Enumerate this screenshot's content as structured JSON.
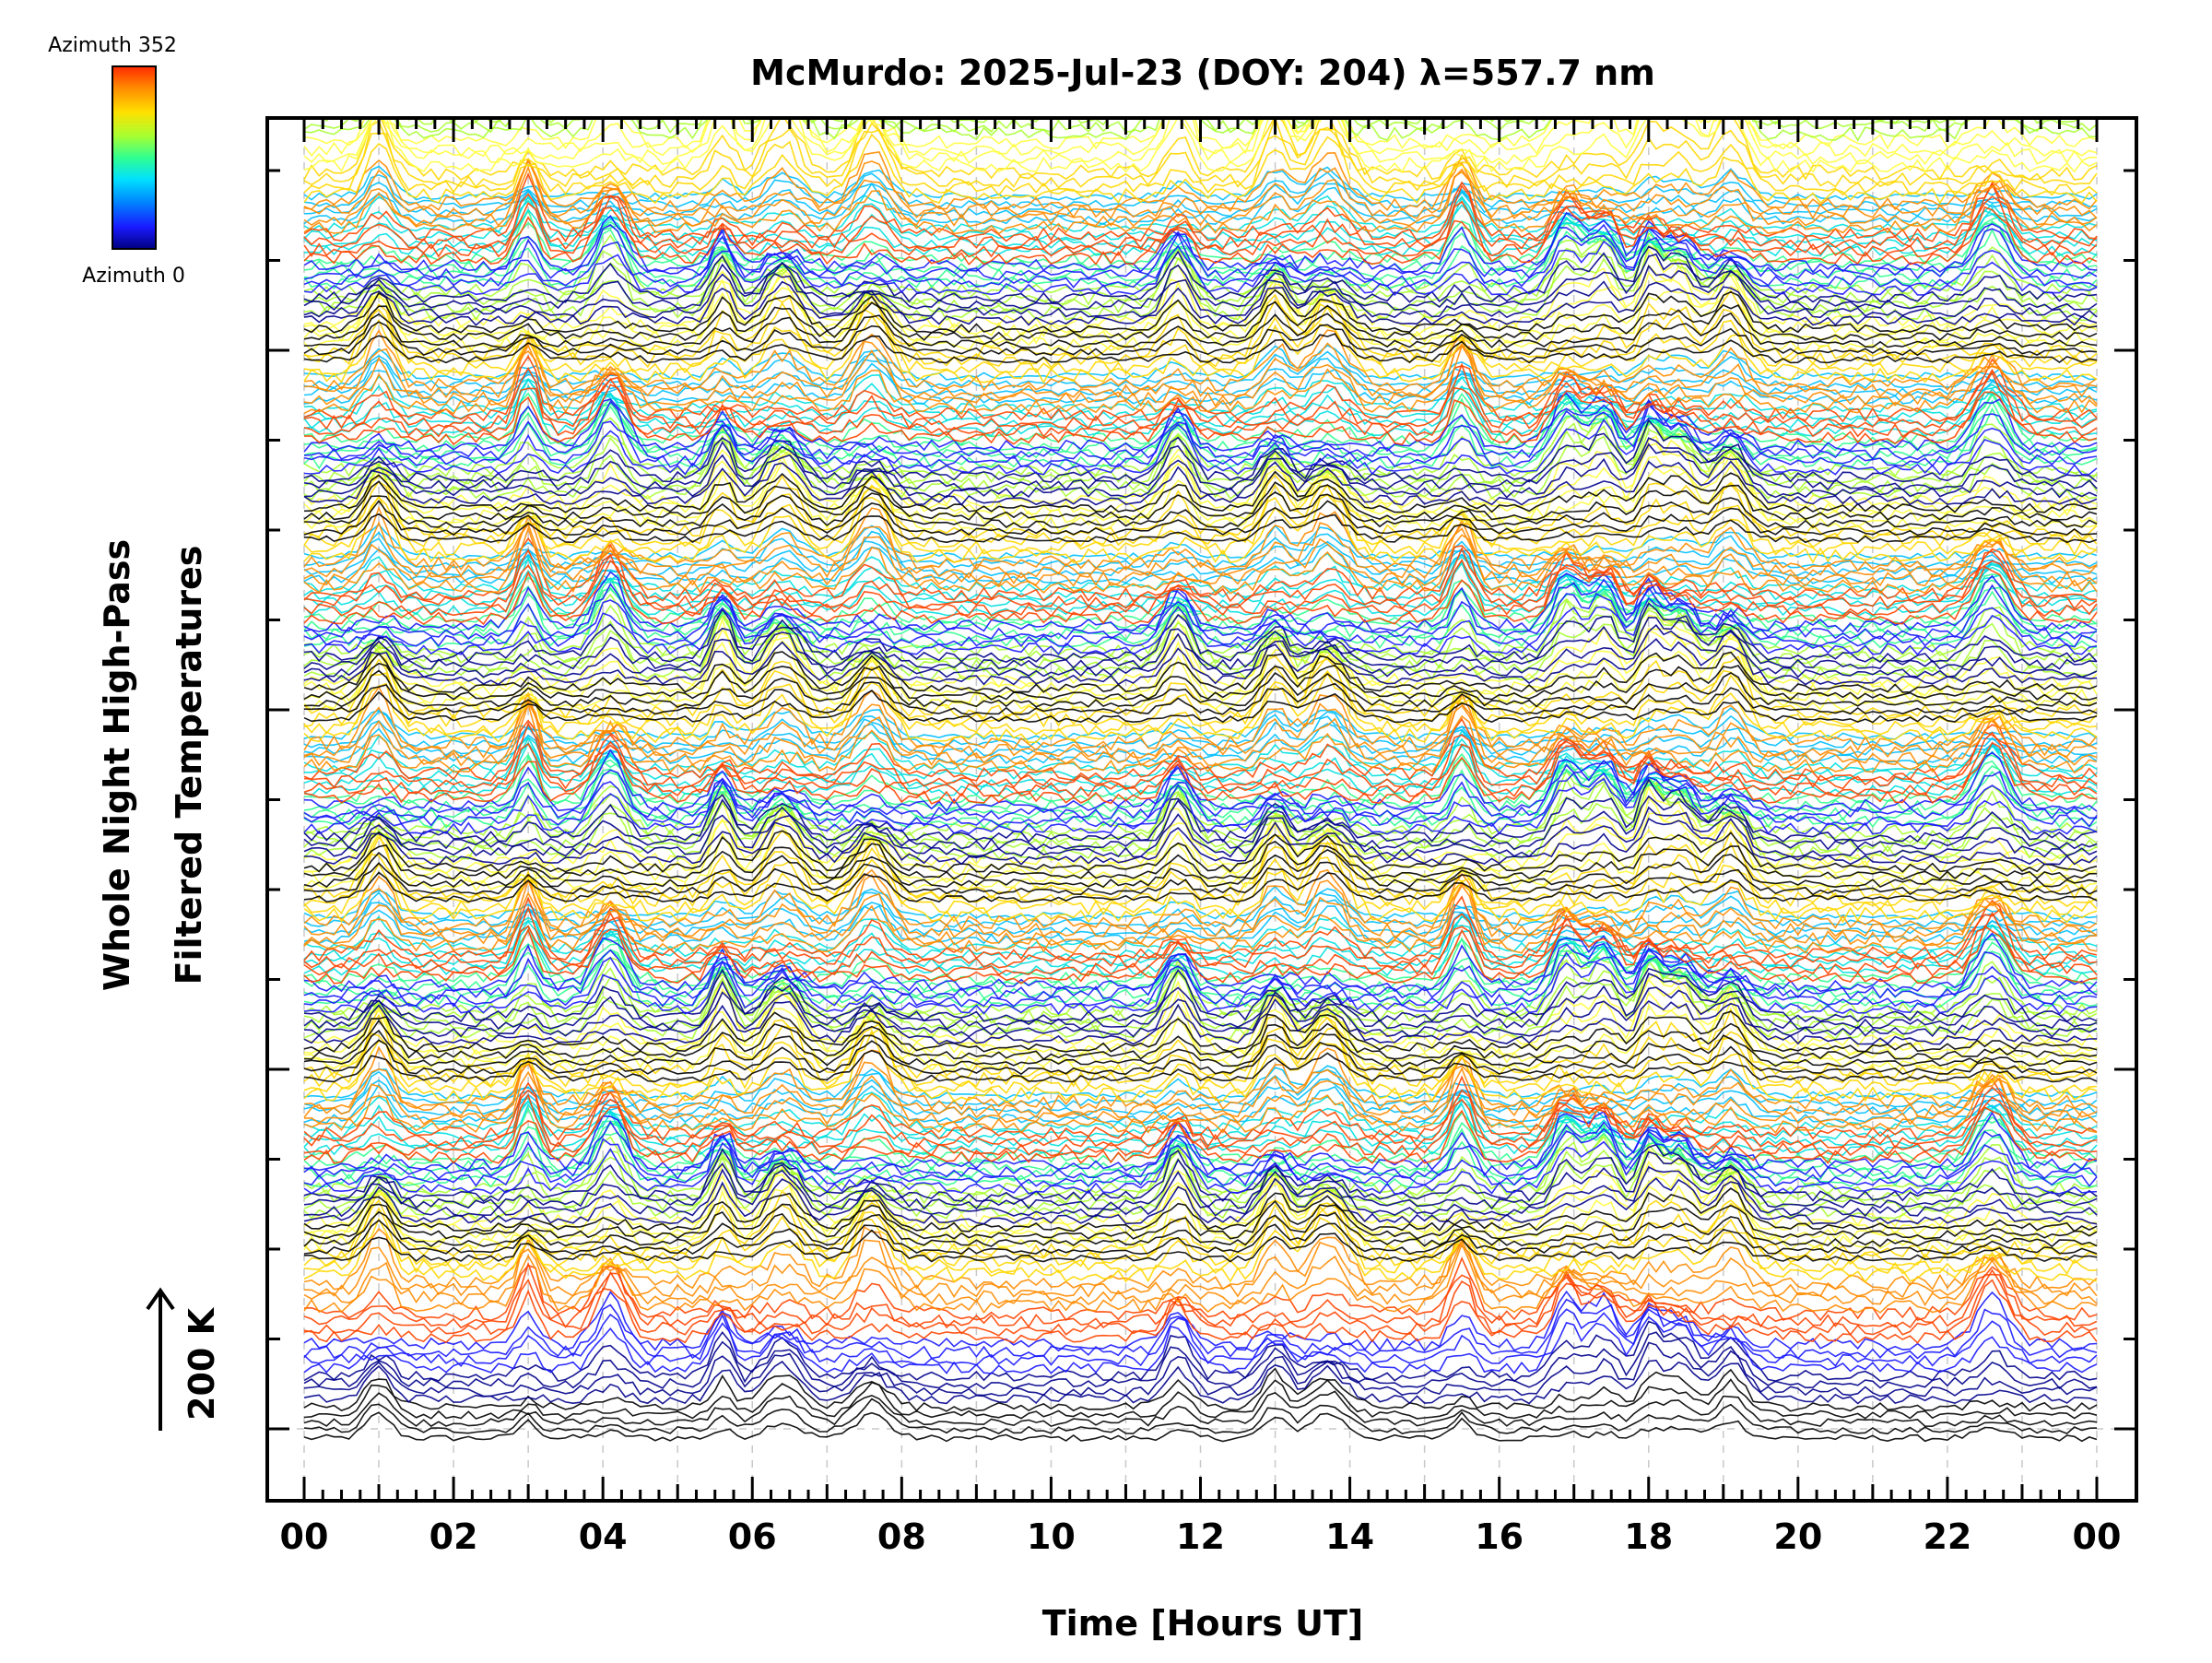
{
  "chart_data": {
    "type": "line",
    "title": "McMurdo: 2025-Jul-23 (DOY: 204) λ=557.7 nm",
    "xlabel": "Time [Hours UT]",
    "ylabel_line1": "Whole Night High-Pass",
    "ylabel_line2": "Filtered Temperatures",
    "scale_label": "200 K",
    "xlim": [
      0,
      24
    ],
    "x_tick_labels": [
      "00",
      "02",
      "04",
      "06",
      "08",
      "10",
      "12",
      "14",
      "16",
      "18",
      "20",
      "22",
      "00"
    ],
    "colorbar": {
      "top_label": "Azimuth 352",
      "bottom_label": "Azimuth 0",
      "colors": [
        "#ff2a00",
        "#ff8c00",
        "#ffe000",
        "#a8ff30",
        "#30ff90",
        "#00e0ff",
        "#0080ff",
        "#1a1aff",
        "#000080"
      ]
    },
    "series_description": {
      "azimuth_min": 0,
      "azimuth_max": 352,
      "stacked_groups": 7,
      "lines_per_group": 45
    },
    "common_peaks_hours": [
      1.0,
      3.0,
      4.1,
      5.6,
      6.4,
      7.6,
      11.7,
      13.0,
      13.7,
      15.5,
      16.9,
      17.4,
      18.0,
      18.4,
      19.1,
      22.6
    ],
    "line_color_sequence": [
      "#000000",
      "#00008b",
      "#1a1aff",
      "#ff4500",
      "#ff8c00",
      "#ffd700",
      "#ffff40",
      "#a8ff30",
      "#30ff90",
      "#00e0e0",
      "#00bfff"
    ]
  }
}
